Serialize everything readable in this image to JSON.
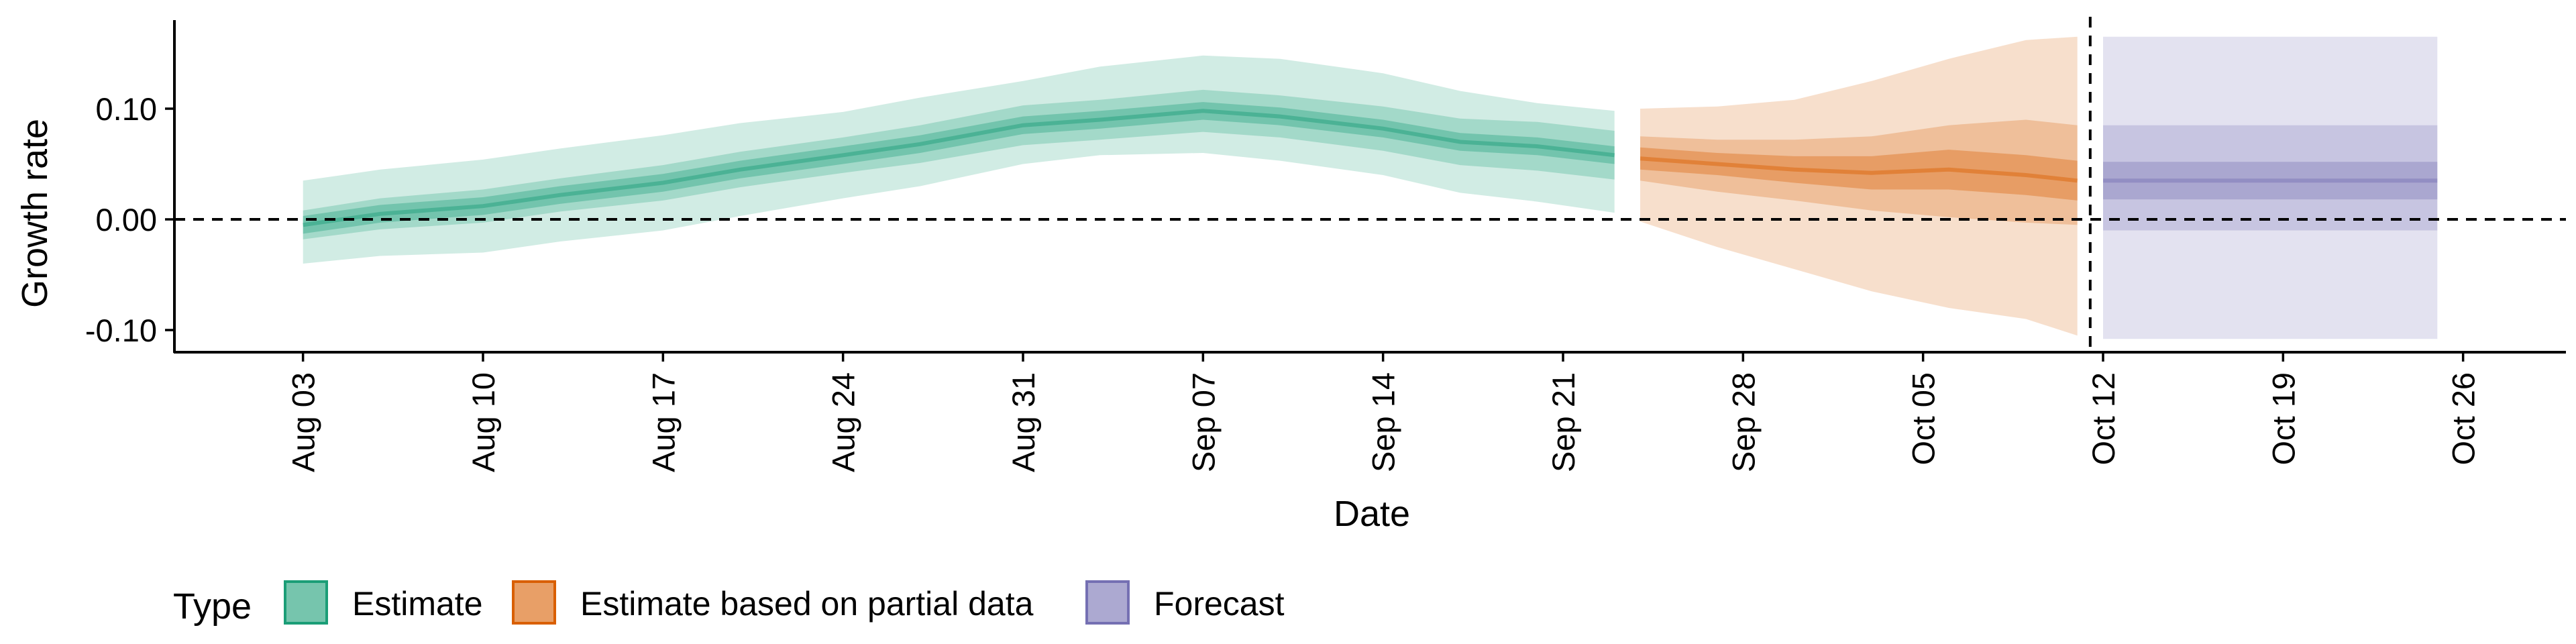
{
  "chart_data": {
    "type": "area",
    "title": "",
    "xlabel": "Date",
    "ylabel": "Growth rate",
    "ylim": [
      -0.12,
      0.18
    ],
    "y_ticks": [
      -0.1,
      0.0,
      0.1
    ],
    "y_tick_labels": [
      "-0.10",
      "0.00",
      "0.10"
    ],
    "x_ticks": [
      "2020-08-03",
      "2020-08-10",
      "2020-08-17",
      "2020-08-24",
      "2020-08-31",
      "2020-09-07",
      "2020-09-14",
      "2020-09-21",
      "2020-09-28",
      "2020-10-05",
      "2020-10-12",
      "2020-10-19",
      "2020-10-26"
    ],
    "x_tick_labels": [
      "Aug 03",
      "Aug 10",
      "Aug 17",
      "Aug 24",
      "Aug 31",
      "Sep 07",
      "Sep 14",
      "Sep 21",
      "Sep 28",
      "Oct 05",
      "Oct 12",
      "Oct 19",
      "Oct 26"
    ],
    "xlim": [
      "2020-07-29",
      "2020-10-30"
    ],
    "zero_line": 0.0,
    "forecast_date_line": "2020-10-11",
    "grid": false,
    "legend": {
      "title": "Type",
      "position": "bottom-left",
      "entries": [
        "Estimate",
        "Estimate based on partial data",
        "Forecast"
      ]
    },
    "series": [
      {
        "name": "Estimate",
        "color": "#1b9e77",
        "x": [
          "2020-08-03",
          "2020-08-06",
          "2020-08-10",
          "2020-08-13",
          "2020-08-17",
          "2020-08-20",
          "2020-08-24",
          "2020-08-27",
          "2020-08-31",
          "2020-09-03",
          "2020-09-07",
          "2020-09-10",
          "2020-09-14",
          "2020-09-17",
          "2020-09-20",
          "2020-09-23"
        ],
        "median": [
          -0.005,
          0.005,
          0.012,
          0.022,
          0.033,
          0.045,
          0.058,
          0.068,
          0.085,
          0.09,
          0.098,
          0.093,
          0.082,
          0.07,
          0.066,
          0.058
        ],
        "lower_20": [
          -0.013,
          -0.003,
          0.004,
          0.014,
          0.025,
          0.037,
          0.05,
          0.06,
          0.077,
          0.082,
          0.09,
          0.085,
          0.074,
          0.062,
          0.058,
          0.05
        ],
        "upper_20": [
          0.003,
          0.013,
          0.02,
          0.03,
          0.041,
          0.053,
          0.066,
          0.076,
          0.093,
          0.098,
          0.106,
          0.101,
          0.09,
          0.078,
          0.074,
          0.066
        ],
        "lower_50": [
          -0.018,
          -0.009,
          -0.003,
          0.007,
          0.017,
          0.029,
          0.042,
          0.051,
          0.067,
          0.072,
          0.079,
          0.074,
          0.062,
          0.049,
          0.044,
          0.036
        ],
        "upper_50": [
          0.008,
          0.019,
          0.027,
          0.037,
          0.049,
          0.061,
          0.074,
          0.085,
          0.103,
          0.108,
          0.117,
          0.112,
          0.102,
          0.091,
          0.088,
          0.08
        ],
        "lower_90": [
          -0.04,
          -0.033,
          -0.03,
          -0.02,
          -0.01,
          0.003,
          0.019,
          0.03,
          0.05,
          0.058,
          0.06,
          0.053,
          0.04,
          0.024,
          0.016,
          0.006
        ],
        "upper_90": [
          0.035,
          0.045,
          0.054,
          0.064,
          0.076,
          0.087,
          0.097,
          0.11,
          0.125,
          0.138,
          0.148,
          0.145,
          0.132,
          0.116,
          0.105,
          0.098
        ]
      },
      {
        "name": "Estimate based on partial data",
        "color": "#d95f02",
        "x": [
          "2020-09-24",
          "2020-09-27",
          "2020-09-30",
          "2020-10-03",
          "2020-10-06",
          "2020-10-09",
          "2020-10-11"
        ],
        "median": [
          0.055,
          0.05,
          0.045,
          0.042,
          0.045,
          0.04,
          0.035
        ],
        "lower_20": [
          0.045,
          0.04,
          0.033,
          0.027,
          0.027,
          0.022,
          0.017
        ],
        "upper_20": [
          0.065,
          0.06,
          0.057,
          0.057,
          0.063,
          0.058,
          0.053
        ],
        "lower_50": [
          0.035,
          0.025,
          0.017,
          0.008,
          0.002,
          -0.003,
          -0.005
        ],
        "upper_50": [
          0.075,
          0.072,
          0.072,
          0.075,
          0.085,
          0.09,
          0.085
        ],
        "lower_90": [
          -0.002,
          -0.025,
          -0.045,
          -0.065,
          -0.08,
          -0.09,
          -0.105
        ],
        "upper_90": [
          0.1,
          0.102,
          0.108,
          0.125,
          0.145,
          0.162,
          0.165
        ]
      },
      {
        "name": "Forecast",
        "color": "#7570b3",
        "x": [
          "2020-10-12",
          "2020-10-25"
        ],
        "median": [
          0.035,
          0.035
        ],
        "lower_20": [
          0.018,
          0.018
        ],
        "upper_20": [
          0.052,
          0.052
        ],
        "lower_50": [
          -0.01,
          -0.01
        ],
        "upper_50": [
          0.085,
          0.085
        ],
        "lower_90": [
          -0.108,
          -0.108
        ],
        "upper_90": [
          0.165,
          0.165
        ]
      }
    ]
  }
}
